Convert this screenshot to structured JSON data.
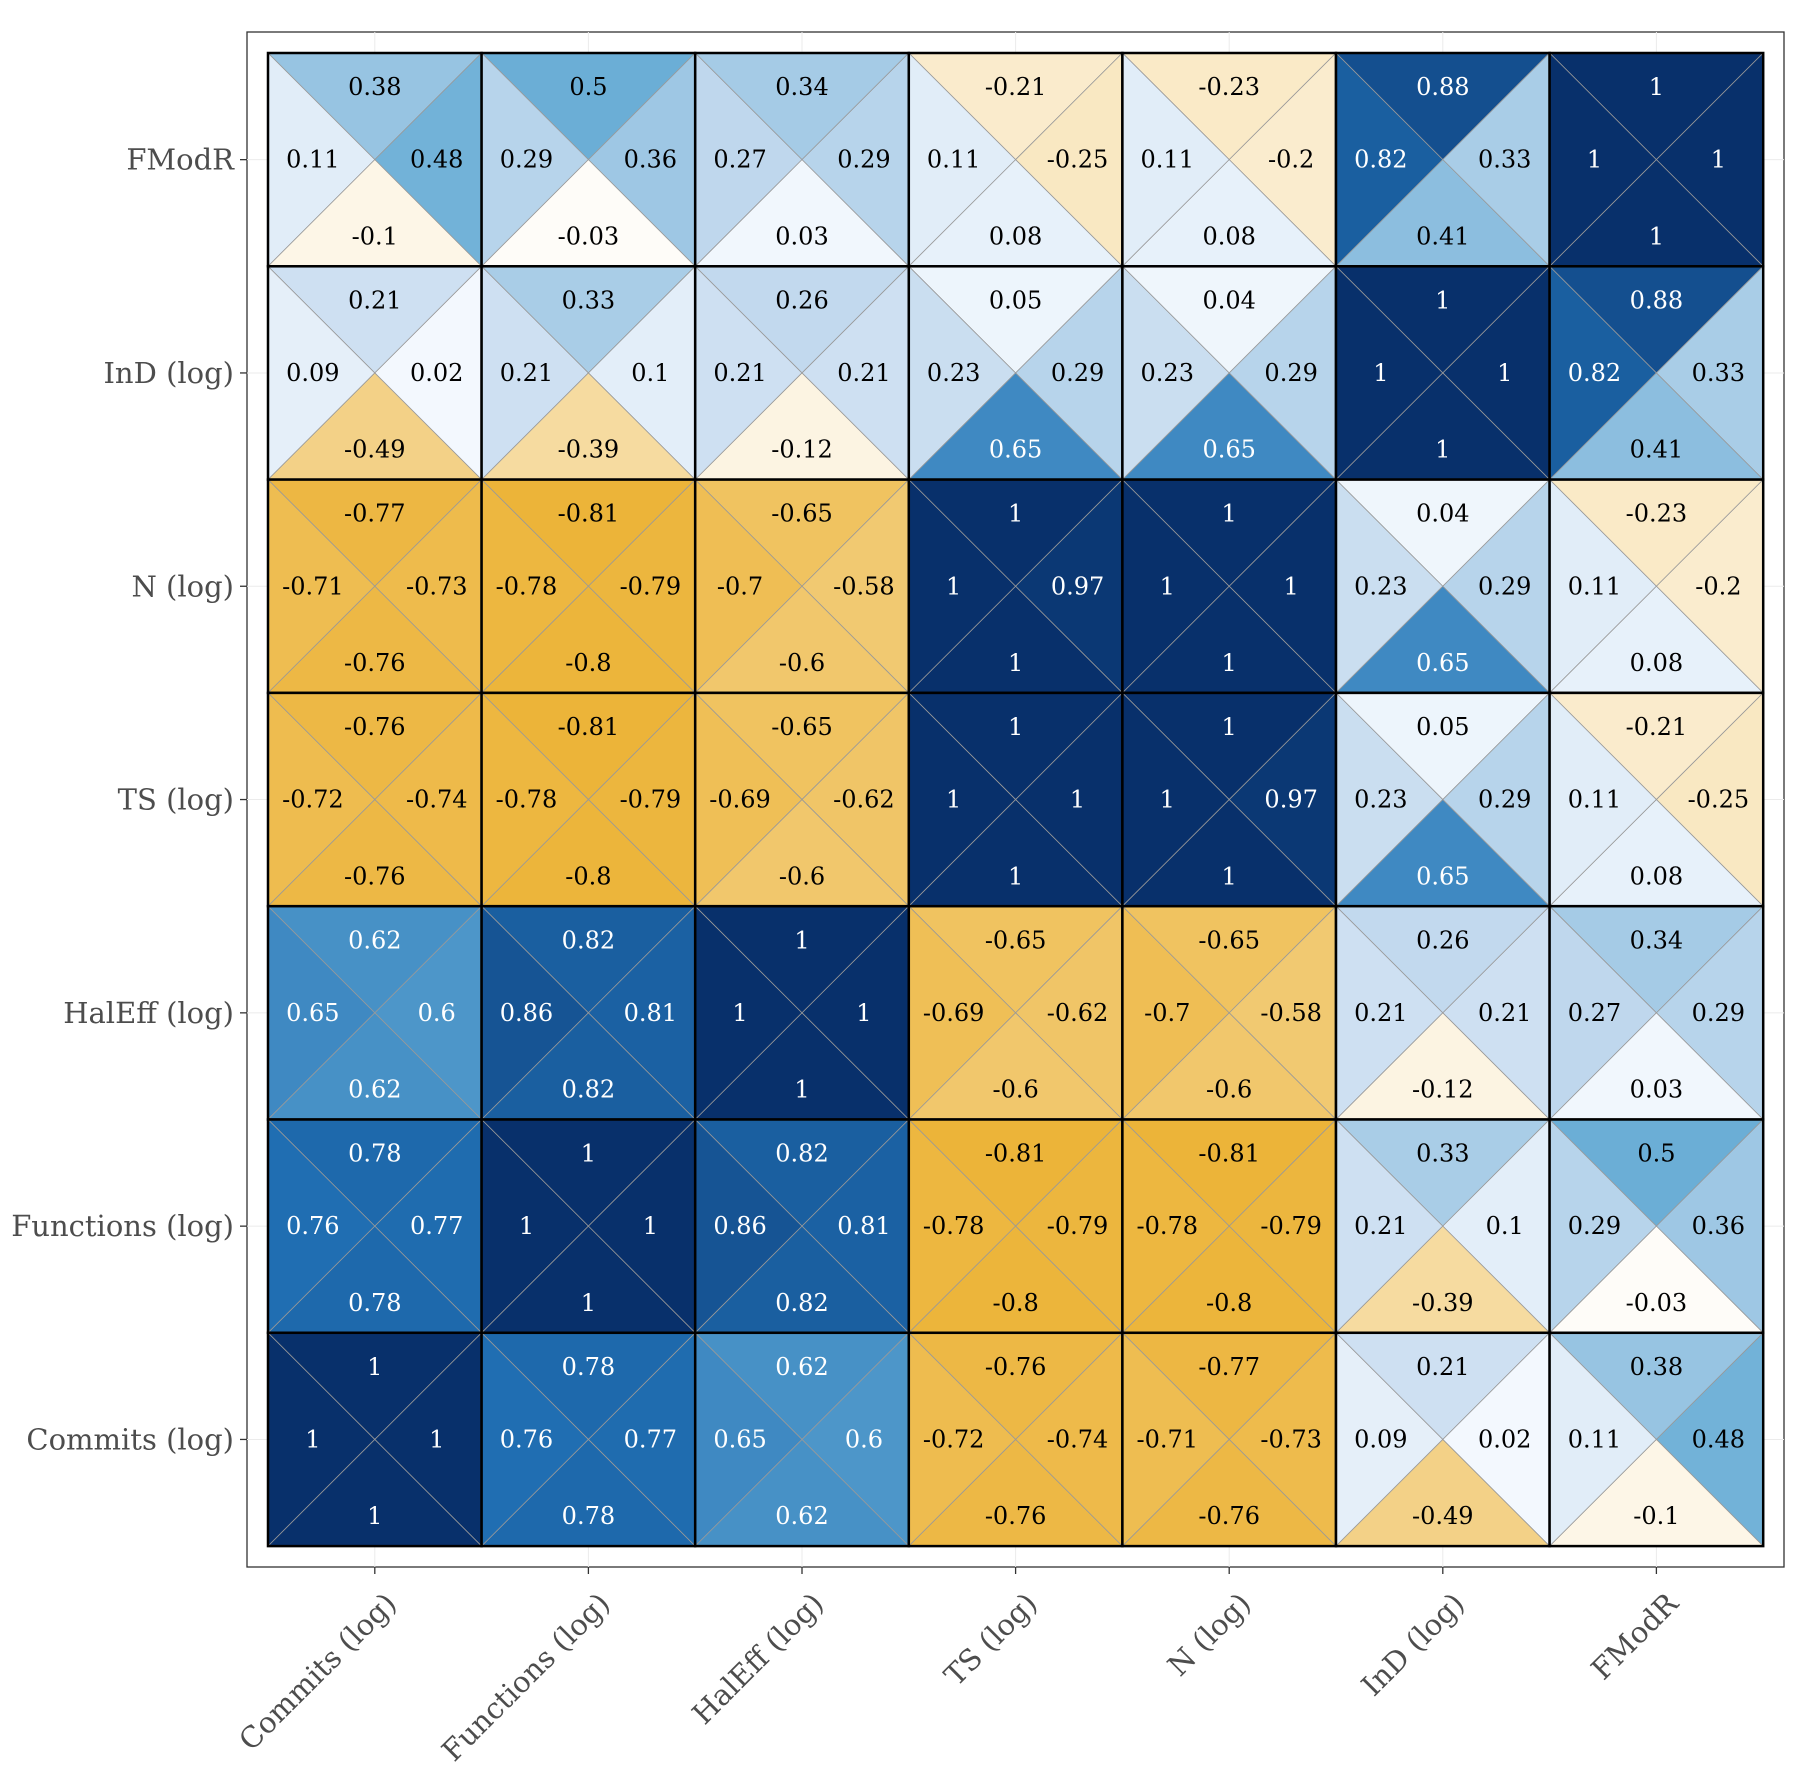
{
  "chart_data": {
    "type": "heatmap",
    "title": "",
    "xlabel": "",
    "ylabel": "",
    "grid": true,
    "legend": "none",
    "cell_layout": [
      "top",
      "left",
      "right",
      "bottom"
    ],
    "x_categories": [
      "Commits (log)",
      "Functions (log)",
      "HalEff (log)",
      "TS (log)",
      "N (log)",
      "InD (log)",
      "FModR"
    ],
    "y_categories_top_to_bottom": [
      "FModR",
      "InD (log)",
      "N (log)",
      "TS (log)",
      "HalEff (log)",
      "Functions (log)",
      "Commits (log)"
    ],
    "color_scale": {
      "negative_max": "#ebb02f",
      "zero": "#ffffff",
      "positive_stops": [
        "#f7fbff",
        "#c6dbef",
        "#6baed6",
        "#2171b5",
        "#08306b"
      ]
    },
    "values": [
      [
        [
          0.38,
          0.11,
          0.48,
          -0.1
        ],
        [
          0.5,
          0.29,
          0.36,
          -0.03
        ],
        [
          0.34,
          0.27,
          0.29,
          0.03
        ],
        [
          -0.21,
          0.11,
          -0.25,
          0.08
        ],
        [
          -0.23,
          0.11,
          -0.2,
          0.08
        ],
        [
          0.88,
          0.82,
          0.33,
          0.41
        ],
        [
          1,
          1,
          1,
          1
        ]
      ],
      [
        [
          0.21,
          0.09,
          0.02,
          -0.49
        ],
        [
          0.33,
          0.21,
          0.1,
          -0.39
        ],
        [
          0.26,
          0.21,
          0.21,
          -0.12
        ],
        [
          0.05,
          0.23,
          0.29,
          0.65
        ],
        [
          0.04,
          0.23,
          0.29,
          0.65
        ],
        [
          1,
          1,
          1,
          1
        ],
        [
          0.88,
          0.82,
          0.33,
          0.41
        ]
      ],
      [
        [
          -0.77,
          -0.71,
          -0.73,
          -0.76
        ],
        [
          -0.81,
          -0.78,
          -0.79,
          -0.8
        ],
        [
          -0.65,
          -0.7,
          -0.58,
          -0.6
        ],
        [
          1,
          1,
          0.97,
          1
        ],
        [
          1,
          1,
          1,
          1
        ],
        [
          0.04,
          0.23,
          0.29,
          0.65
        ],
        [
          -0.23,
          0.11,
          -0.2,
          0.08
        ]
      ],
      [
        [
          -0.76,
          -0.72,
          -0.74,
          -0.76
        ],
        [
          -0.81,
          -0.78,
          -0.79,
          -0.8
        ],
        [
          -0.65,
          -0.69,
          -0.62,
          -0.6
        ],
        [
          1,
          1,
          1,
          1
        ],
        [
          1,
          1,
          0.97,
          1
        ],
        [
          0.05,
          0.23,
          0.29,
          0.65
        ],
        [
          -0.21,
          0.11,
          -0.25,
          0.08
        ]
      ],
      [
        [
          0.62,
          0.65,
          0.6,
          0.62
        ],
        [
          0.82,
          0.86,
          0.81,
          0.82
        ],
        [
          1,
          1,
          1,
          1
        ],
        [
          -0.65,
          -0.69,
          -0.62,
          -0.6
        ],
        [
          -0.65,
          -0.7,
          -0.58,
          -0.6
        ],
        [
          0.26,
          0.21,
          0.21,
          -0.12
        ],
        [
          0.34,
          0.27,
          0.29,
          0.03
        ]
      ],
      [
        [
          0.78,
          0.76,
          0.77,
          0.78
        ],
        [
          1,
          1,
          1,
          1
        ],
        [
          0.82,
          0.86,
          0.81,
          0.82
        ],
        [
          -0.81,
          -0.78,
          -0.79,
          -0.8
        ],
        [
          -0.81,
          -0.78,
          -0.79,
          -0.8
        ],
        [
          0.33,
          0.21,
          0.1,
          -0.39
        ],
        [
          0.5,
          0.29,
          0.36,
          -0.03
        ]
      ],
      [
        [
          1,
          1,
          1,
          1
        ],
        [
          0.78,
          0.76,
          0.77,
          0.78
        ],
        [
          0.62,
          0.65,
          0.6,
          0.62
        ],
        [
          -0.76,
          -0.72,
          -0.74,
          -0.76
        ],
        [
          -0.77,
          -0.71,
          -0.73,
          -0.76
        ],
        [
          0.21,
          0.09,
          0.02,
          -0.49
        ],
        [
          0.38,
          0.11,
          0.48,
          -0.1
        ]
      ]
    ]
  }
}
